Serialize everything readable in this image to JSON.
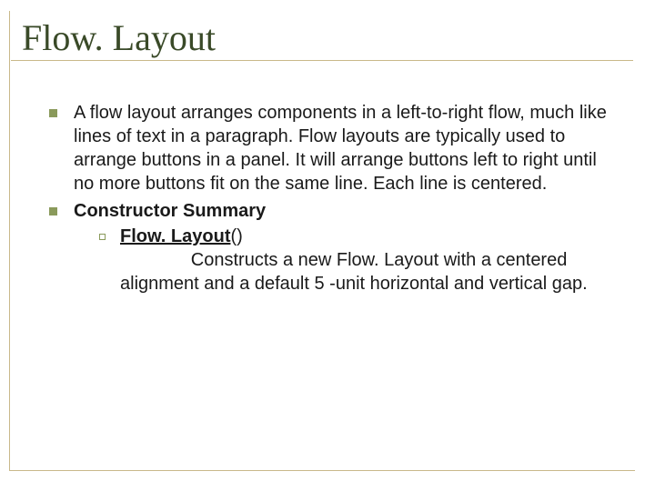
{
  "title": "Flow. Layout",
  "colors": {
    "title_color": "#3a4a28",
    "rule_color": "#c9b98a",
    "bullet_color": "#8a9a5b",
    "text_color": "#1a1a1a",
    "background": "#ffffff"
  },
  "typography": {
    "title_family": "Times New Roman",
    "title_size_pt": 30,
    "body_family": "Arial",
    "body_size_pt": 15
  },
  "bullets": [
    {
      "text": "A flow layout arranges components in a left-to-right flow, much like lines of text in a paragraph. Flow layouts are typically used to arrange buttons in a panel. It will arrange buttons left to right until no more buttons fit on the same line. Each line is centered."
    },
    {
      "text": "Constructor Summary",
      "bold": true,
      "sub": {
        "link_text": "Flow. Layout",
        "link_suffix": "()",
        "desc_prefix": "              ",
        "desc": "Constructs a new Flow. Layout with a centered alignment and a default 5 -unit horizontal and vertical gap."
      }
    }
  ]
}
